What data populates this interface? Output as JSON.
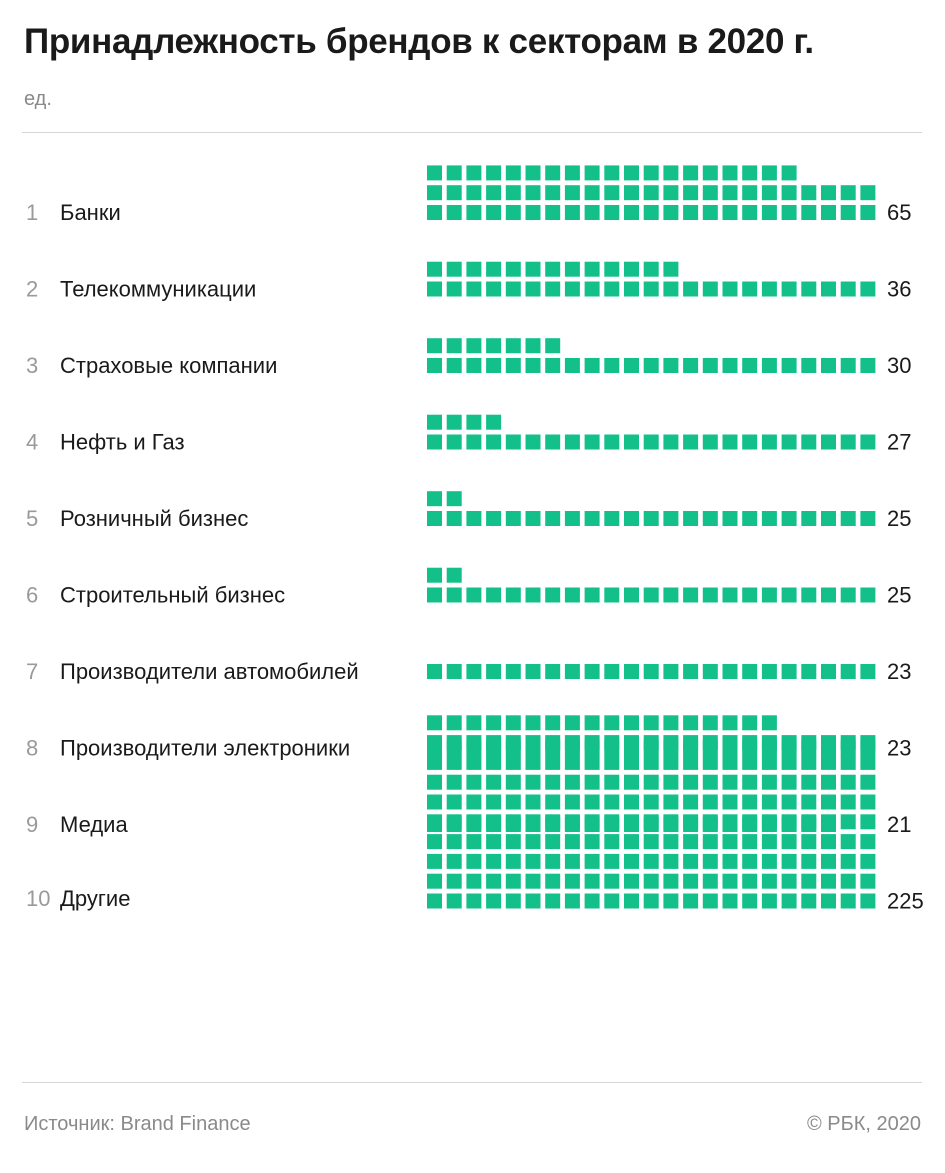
{
  "header": {
    "title": "Принадлежность брендов к секторам в 2020 г.",
    "unit": "ед."
  },
  "footer": {
    "source": "Источник: Brand Finance",
    "copyright": "© РБК, 2020"
  },
  "colors": {
    "square": "#13c08a",
    "rank": "#9a9a9a",
    "text": "#1a1a1a",
    "muted": "#8a8a8a",
    "rule": "#d6d6d6"
  },
  "chart_data": {
    "type": "waffle",
    "units_per_row": 23,
    "categories": [
      {
        "rank": "1",
        "label": "Банки",
        "value": 65
      },
      {
        "rank": "2",
        "label": "Телекоммуникации",
        "value": 36
      },
      {
        "rank": "3",
        "label": "Страховые компании",
        "value": 30
      },
      {
        "rank": "4",
        "label": "Нефть и Газ",
        "value": 27
      },
      {
        "rank": "5",
        "label": "Розничный бизнес",
        "value": 25
      },
      {
        "rank": "6",
        "label": "Строительный бизнес",
        "value": 25
      },
      {
        "rank": "7",
        "label": "Производители автомобилей",
        "value": 23
      },
      {
        "rank": "8",
        "label": "Производители электроники",
        "value": 23
      },
      {
        "rank": "9",
        "label": "Медиа",
        "value": 21
      },
      {
        "rank": "10",
        "label": "Другие",
        "value": 225
      }
    ]
  }
}
